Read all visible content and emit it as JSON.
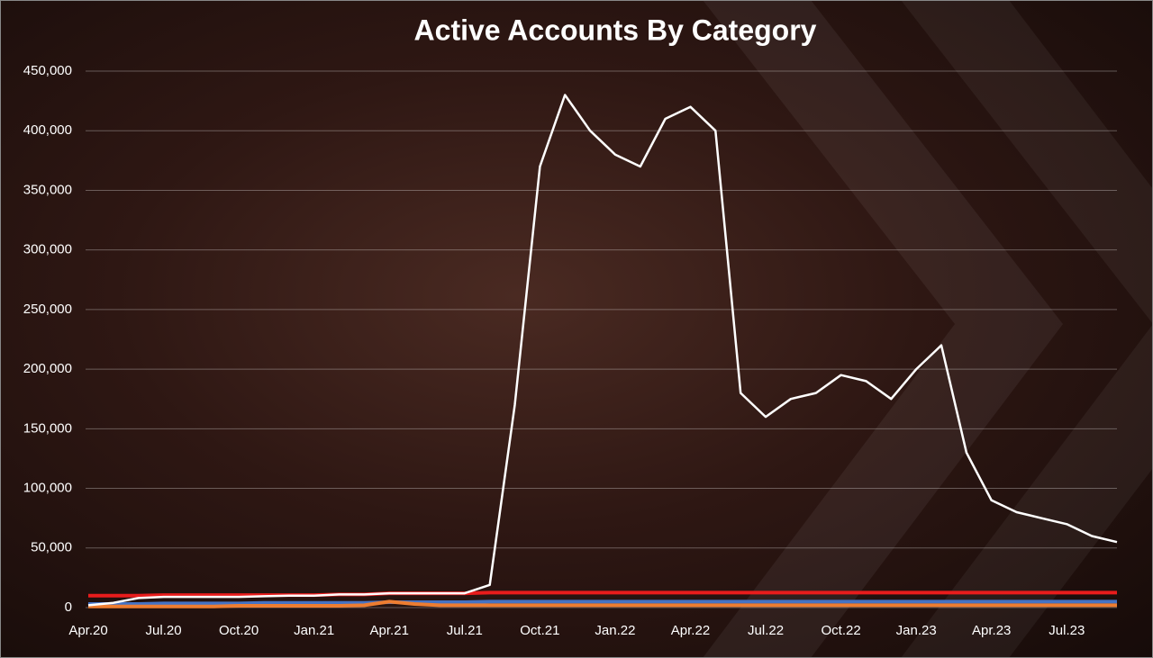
{
  "chart_data": {
    "type": "line",
    "title": "Active Accounts By Category",
    "categories": [
      "Apr.20",
      null,
      null,
      "Jul.20",
      null,
      null,
      "Oct.20",
      null,
      null,
      "Jan.21",
      null,
      null,
      "Apr.21",
      null,
      null,
      "Jul.21",
      null,
      null,
      "Oct.21",
      null,
      null,
      "Jan.22",
      null,
      null,
      "Apr.22",
      null,
      null,
      "Jul.22",
      null,
      null,
      "Oct.22",
      null,
      null,
      "Jan.23",
      null,
      null,
      "Apr.23",
      null,
      null,
      "Jul.23",
      null,
      null
    ],
    "series": [
      {
        "color": "#4472c4",
        "values": [
          3000,
          3000,
          3000,
          3500,
          3500,
          3500,
          3500,
          4000,
          4000,
          4000,
          4000,
          4000,
          4500,
          4500,
          4500,
          4500,
          5000,
          5000,
          5000,
          5000,
          5000,
          5000,
          5000,
          5000,
          5000,
          5000,
          5000,
          5000,
          5000,
          5000,
          5000,
          5000,
          5000,
          5000,
          5000,
          5000,
          5000,
          5000,
          5000,
          5000,
          5000,
          5000
        ]
      },
      {
        "color": "#ed7d31",
        "values": [
          1000,
          1000,
          1000,
          1000,
          1000,
          1000,
          1500,
          1500,
          1500,
          1500,
          1500,
          2000,
          5000,
          3000,
          2000,
          2000,
          2000,
          2000,
          2000,
          2000,
          2000,
          2000,
          2000,
          2000,
          2000,
          2000,
          2000,
          2000,
          2000,
          2000,
          2000,
          2000,
          2000,
          2000,
          2000,
          2000,
          2000,
          2000,
          2000,
          2000,
          2000,
          2000
        ]
      },
      {
        "color": "#e81c1c",
        "values": [
          10000,
          10000,
          10000,
          10500,
          10500,
          10500,
          10500,
          10500,
          10500,
          10500,
          11000,
          11000,
          12000,
          12000,
          12000,
          12000,
          12500,
          12500,
          12500,
          12500,
          12500,
          12500,
          12500,
          12500,
          12500,
          12500,
          12500,
          12500,
          12500,
          12500,
          12500,
          12500,
          12500,
          12500,
          12500,
          12500,
          12500,
          12500,
          12500,
          12500,
          12500,
          12500
        ]
      },
      {
        "color": "#ffffff",
        "values": [
          2000,
          4000,
          8000,
          9000,
          9000,
          9000,
          9000,
          9500,
          10000,
          10000,
          11000,
          11000,
          12000,
          12000,
          12000,
          12000,
          19000,
          170000,
          370000,
          430000,
          400000,
          380000,
          370000,
          410000,
          420000,
          400000,
          180000,
          160000,
          175000,
          180000,
          195000,
          190000,
          175000,
          200000,
          220000,
          130000,
          90000,
          80000,
          75000,
          70000,
          60000,
          55000
        ]
      }
    ],
    "ylim": [
      0,
      450000
    ],
    "yticks": [
      {
        "value": 0,
        "label": "0"
      },
      {
        "value": 50000,
        "label": "50,000"
      },
      {
        "value": 100000,
        "label": "100,000"
      },
      {
        "value": 150000,
        "label": "150,000"
      },
      {
        "value": 200000,
        "label": "200,000"
      },
      {
        "value": 250000,
        "label": "250,000"
      },
      {
        "value": 300000,
        "label": "300,000"
      },
      {
        "value": 350000,
        "label": "350,000"
      },
      {
        "value": 400000,
        "label": "400,000"
      },
      {
        "value": 450000,
        "label": "450,000"
      }
    ],
    "grid": true
  }
}
